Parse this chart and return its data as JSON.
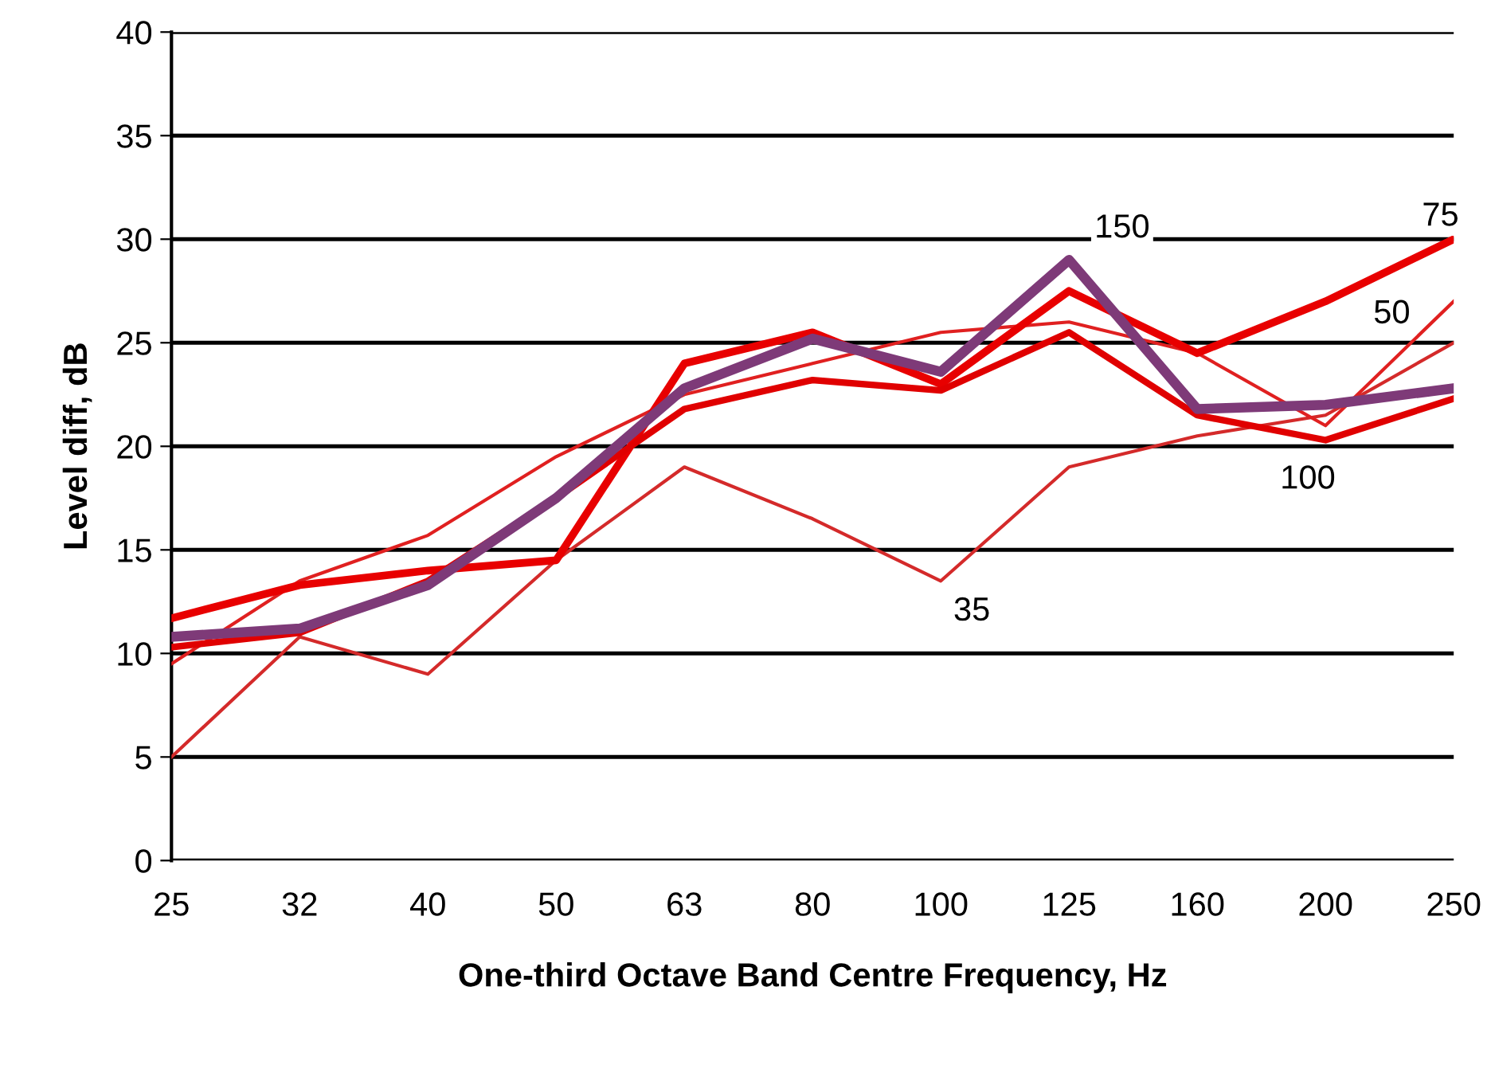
{
  "chart_data": {
    "type": "line",
    "xlabel": "One-third Octave Band Centre Frequency, Hz",
    "ylabel": "Level diff, dB",
    "categories": [
      "25",
      "32",
      "40",
      "50",
      "63",
      "80",
      "100",
      "125",
      "160",
      "200",
      "250"
    ],
    "series": [
      {
        "color": "#d42a2a",
        "values": [
          5,
          10.8,
          9,
          14.5,
          19,
          16.5,
          13.5,
          19,
          20.5,
          21.5,
          25
        ]
      },
      {
        "color": "#e02020",
        "values": [
          9.5,
          13.5,
          15.7,
          19.5,
          22.5,
          24,
          25.5,
          26,
          24.5,
          21,
          27
        ]
      },
      {
        "color": "#e80000",
        "values": [
          11.7,
          13.3,
          14,
          14.5,
          24,
          25.5,
          23,
          27.5,
          24.5,
          27,
          30
        ]
      },
      {
        "color": "#e00000",
        "values": [
          10.3,
          11,
          13.5,
          17.5,
          21.8,
          23.2,
          22.7,
          25.5,
          21.5,
          20.3,
          22.3
        ]
      },
      {
        "color": "#7e3a78",
        "values": [
          10.8,
          11.2,
          13.3,
          17.5,
          22.8,
          25.2,
          23.6,
          29,
          21.8,
          22,
          22.8
        ]
      }
    ],
    "annotations": [
      {
        "text": "150",
        "x": "125",
        "y": 29
      },
      {
        "text": "75",
        "x": "250",
        "y": 30
      },
      {
        "text": "50",
        "x": "250",
        "y": 27
      },
      {
        "text": "100",
        "x": "200",
        "y": 20.3
      },
      {
        "text": "35",
        "x": "100",
        "y": 13.5
      }
    ],
    "ylim": [
      0,
      40
    ],
    "yticks": [
      0,
      5,
      10,
      15,
      20,
      25,
      30,
      35,
      40
    ],
    "grid": "y",
    "legend": false,
    "marker": "none",
    "line_style": "solid"
  }
}
